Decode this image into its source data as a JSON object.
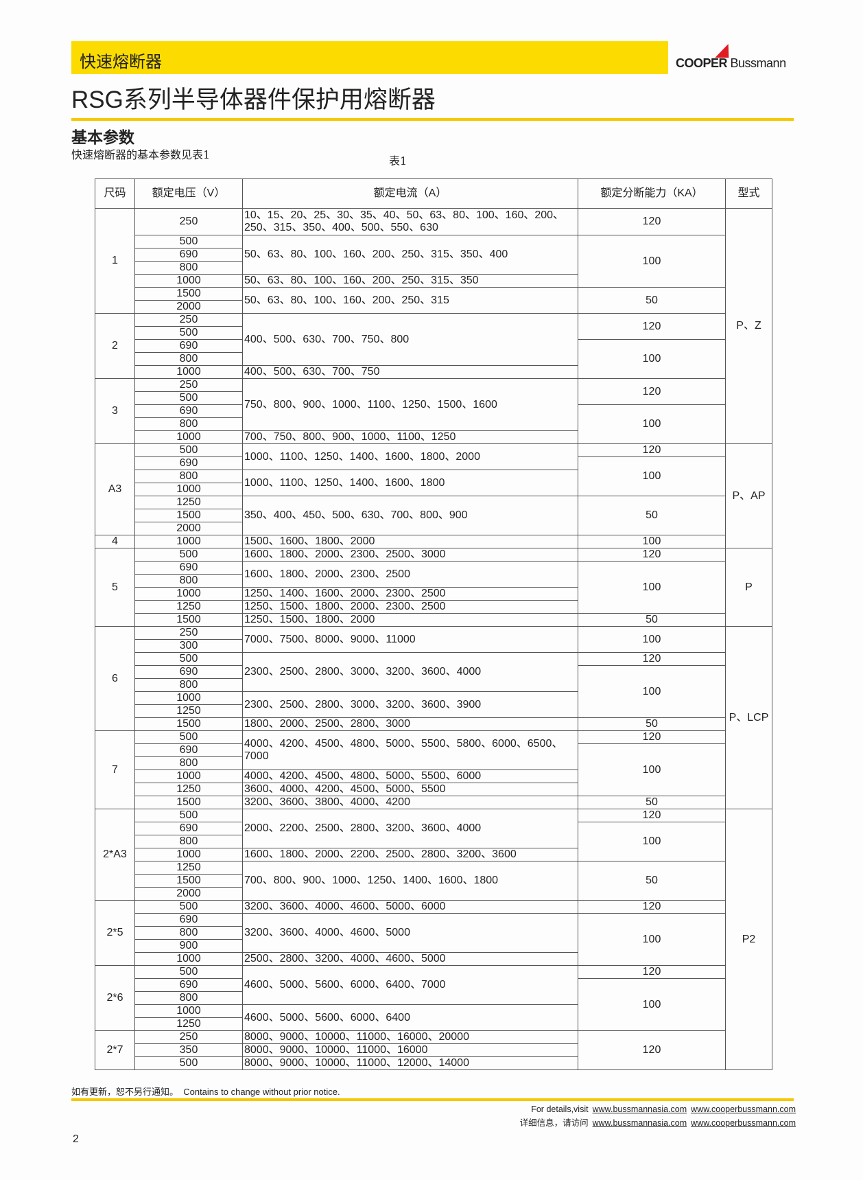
{
  "header": {
    "category": "快速熔断器",
    "brand_bold": "COOPER",
    "brand_regular": "Bussmann",
    "title": "RSG系列半导体器件保护用熔断器",
    "accent_color": "#fcdc00",
    "logo_mark_color": "#e01b22"
  },
  "section": {
    "heading": "基本参数",
    "subtitle": "快速熔断器的基本参数见表1",
    "table_caption": "表1"
  },
  "table": {
    "headers": [
      "尺码",
      "额定电压（V）",
      "额定电流（A）",
      "额定分断能力（KA）",
      "型式"
    ],
    "types": [
      {
        "label": "P、Z",
        "groups": 3
      },
      {
        "label": "P、AP",
        "groups": 2
      },
      {
        "label": "P",
        "groups": 1
      },
      {
        "label": "P、LCP",
        "groups": 2
      },
      {
        "label": "P2",
        "groups": 4
      }
    ],
    "groups": [
      {
        "size": "1",
        "voltages": [
          "250",
          "500",
          "690",
          "800",
          "1000",
          "1500",
          "2000"
        ],
        "currents": [
          {
            "text": "10、15、20、25、30、35、40、50、63、80、100、160、200、250、315、350、400、500、550、630",
            "rows": 1
          },
          {
            "text": "50、63、80、100、160、200、250、315、350、400",
            "rows": 3
          },
          {
            "text": "50、63、80、100、160、200、250、315、350",
            "rows": 1
          },
          {
            "text": "50、63、80、100、160、200、250、315",
            "rows": 2
          }
        ],
        "breaking": [
          {
            "text": "120",
            "rows": 1
          },
          {
            "text": "100",
            "rows": 4
          },
          {
            "text": "50",
            "rows": 2
          }
        ]
      },
      {
        "size": "2",
        "voltages": [
          "250",
          "500",
          "690",
          "800",
          "1000"
        ],
        "currents": [
          {
            "text": "400、500、630、700、750、800",
            "rows": 4
          },
          {
            "text": "400、500、630、700、750",
            "rows": 1
          }
        ],
        "breaking": [
          {
            "text": "120",
            "rows": 2
          },
          {
            "text": "100",
            "rows": 3
          }
        ]
      },
      {
        "size": "3",
        "voltages": [
          "250",
          "500",
          "690",
          "800",
          "1000"
        ],
        "currents": [
          {
            "text": "750、800、900、1000、1100、1250、1500、1600",
            "rows": 4
          },
          {
            "text": "700、750、800、900、1000、1100、1250",
            "rows": 1
          }
        ],
        "breaking": [
          {
            "text": "120",
            "rows": 2
          },
          {
            "text": "100",
            "rows": 3
          }
        ]
      },
      {
        "size": "A3",
        "voltages": [
          "500",
          "690",
          "800",
          "1000",
          "1250",
          "1500",
          "2000"
        ],
        "currents": [
          {
            "text": "1000、1100、1250、1400、1600、1800、2000",
            "rows": 2
          },
          {
            "text": "1000、1100、1250、1400、1600、1800",
            "rows": 2
          },
          {
            "text": "350、400、450、500、630、700、800、900",
            "rows": 3
          }
        ],
        "breaking": [
          {
            "text": "120",
            "rows": 1
          },
          {
            "text": "100",
            "rows": 3
          },
          {
            "text": "50",
            "rows": 3
          }
        ]
      },
      {
        "size": "4",
        "voltages": [
          "1000"
        ],
        "currents": [
          {
            "text": "1500、1600、1800、2000",
            "rows": 1
          }
        ],
        "breaking": [
          {
            "text": "100",
            "rows": 1
          }
        ]
      },
      {
        "size": "5",
        "voltages": [
          "500",
          "690",
          "800",
          "1000",
          "1250",
          "1500"
        ],
        "currents": [
          {
            "text": "1600、1800、2000、2300、2500、3000",
            "rows": 1
          },
          {
            "text": "1600、1800、2000、2300、2500",
            "rows": 2
          },
          {
            "text": "1250、1400、1600、2000、2300、2500",
            "rows": 1
          },
          {
            "text": "1250、1500、1800、2000、2300、2500",
            "rows": 1
          },
          {
            "text": "1250、1500、1800、2000",
            "rows": 1
          }
        ],
        "breaking": [
          {
            "text": "120",
            "rows": 1
          },
          {
            "text": "100",
            "rows": 4
          },
          {
            "text": "50",
            "rows": 1
          }
        ]
      },
      {
        "size": "6",
        "voltages": [
          "250",
          "300",
          "500",
          "690",
          "800",
          "1000",
          "1250",
          "1500"
        ],
        "currents": [
          {
            "text": "7000、7500、8000、9000、11000",
            "rows": 2
          },
          {
            "text": "2300、2500、2800、3000、3200、3600、4000",
            "rows": 3
          },
          {
            "text": "2300、2500、2800、3000、3200、3600、3900",
            "rows": 2
          },
          {
            "text": "1800、2000、2500、2800、3000",
            "rows": 1
          }
        ],
        "breaking": [
          {
            "text": "100",
            "rows": 2
          },
          {
            "text": "120",
            "rows": 1
          },
          {
            "text": "100",
            "rows": 4
          },
          {
            "text": "50",
            "rows": 1
          }
        ]
      },
      {
        "size": "7",
        "voltages": [
          "500",
          "690",
          "800",
          "1000",
          "1250",
          "1500"
        ],
        "currents": [
          {
            "text": "4000、4200、4500、4800、5000、5500、5800、6000、6500、7000",
            "rows": 3
          },
          {
            "text": "4000、4200、4500、4800、5000、5500、6000",
            "rows": 1
          },
          {
            "text": "3600、4000、4200、4500、5000、5500",
            "rows": 1
          },
          {
            "text": "3200、3600、3800、4000、4200",
            "rows": 1
          }
        ],
        "breaking": [
          {
            "text": "120",
            "rows": 1
          },
          {
            "text": "100",
            "rows": 4
          },
          {
            "text": "50",
            "rows": 1
          }
        ]
      },
      {
        "size": "2*A3",
        "voltages": [
          "500",
          "690",
          "800",
          "1000",
          "1250",
          "1500",
          "2000"
        ],
        "currents": [
          {
            "text": "2000、2200、2500、2800、3200、3600、4000",
            "rows": 3
          },
          {
            "text": "1600、1800、2000、2200、2500、2800、3200、3600",
            "rows": 1
          },
          {
            "text": "700、800、900、1000、1250、1400、1600、1800",
            "rows": 3
          }
        ],
        "breaking": [
          {
            "text": "120",
            "rows": 1
          },
          {
            "text": "100",
            "rows": 3
          },
          {
            "text": "50",
            "rows": 3
          }
        ]
      },
      {
        "size": "2*5",
        "voltages": [
          "500",
          "690",
          "800",
          "900",
          "1000"
        ],
        "currents": [
          {
            "text": "3200、3600、4000、4600、5000、6000",
            "rows": 1
          },
          {
            "text": "3200、3600、4000、4600、5000",
            "rows": 3
          },
          {
            "text": "2500、2800、3200、4000、4600、5000",
            "rows": 1
          }
        ],
        "breaking": [
          {
            "text": "120",
            "rows": 1
          },
          {
            "text": "100",
            "rows": 4
          }
        ]
      },
      {
        "size": "2*6",
        "voltages": [
          "500",
          "690",
          "800",
          "1000",
          "1250"
        ],
        "currents": [
          {
            "text": "4600、5000、5600、6000、6400、7000",
            "rows": 3
          },
          {
            "text": "4600、5000、5600、6000、6400",
            "rows": 2
          }
        ],
        "breaking": [
          {
            "text": "120",
            "rows": 1
          },
          {
            "text": "100",
            "rows": 4
          }
        ]
      },
      {
        "size": "2*7",
        "voltages": [
          "250",
          "350",
          "500"
        ],
        "currents": [
          {
            "text": "8000、9000、10000、11000、16000、20000",
            "rows": 1
          },
          {
            "text": "8000、9000、10000、11000、16000",
            "rows": 1
          },
          {
            "text": "8000、9000、10000、11000、12000、14000",
            "rows": 1
          }
        ],
        "breaking": [
          {
            "text": "120",
            "rows": 3
          }
        ]
      }
    ]
  },
  "footer": {
    "notice": "如有更新，恕不另行通知。  Contains to change without prior notice.",
    "details_en": "For details,visit",
    "details_cn": "详细信息，请访问",
    "link1": "www.bussmannasia.com",
    "link2": "www.cooperbussmann.com",
    "page_number": "2"
  }
}
